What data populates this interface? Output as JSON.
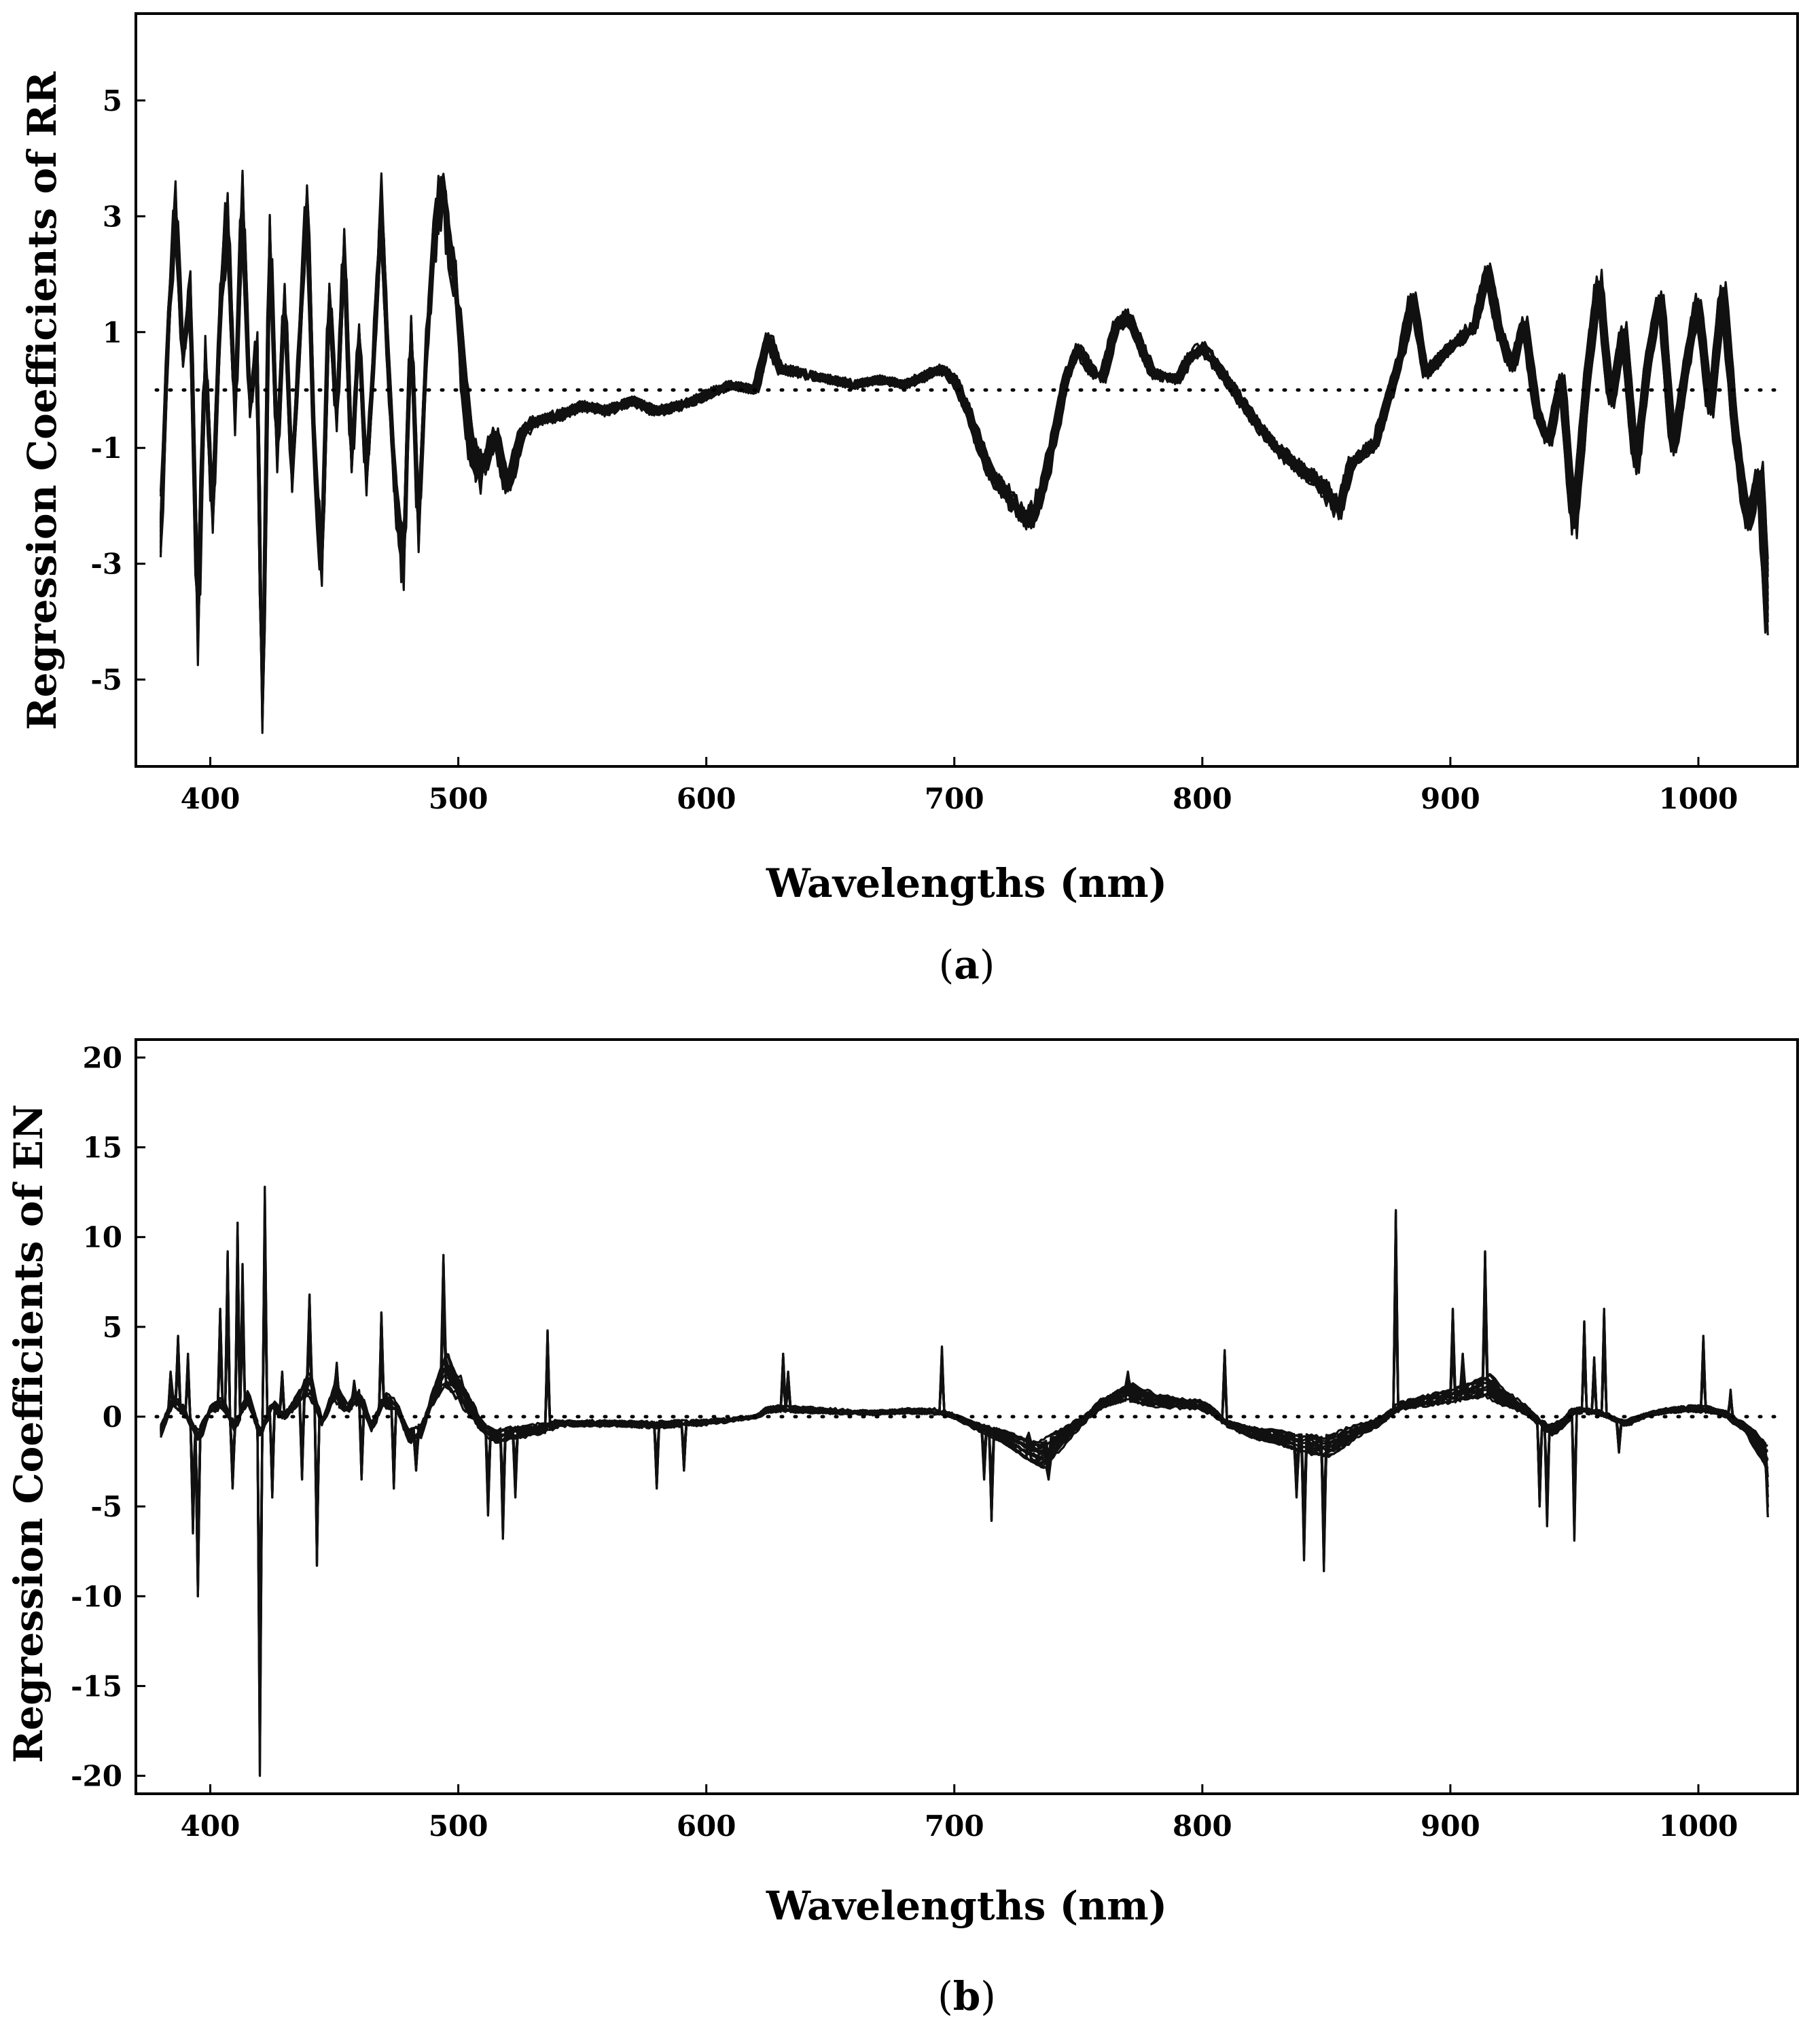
{
  "chart_data": [
    {
      "id": "a",
      "type": "line",
      "caption_letter": "a",
      "xlabel": "Wavelengths (nm)",
      "ylabel": "Regression Coefficients of RR",
      "xlim": [
        370,
        1040
      ],
      "ylim": [
        -6.5,
        6.5
      ],
      "xticks": [
        400,
        500,
        600,
        700,
        800,
        900,
        1000
      ],
      "yticks": [
        5,
        3,
        1,
        -1,
        -3,
        -5
      ],
      "reference_line": {
        "y": 0,
        "style": "dotted"
      },
      "series_count": 20,
      "base_profile": {
        "x": [
          380,
          383,
          386,
          389,
          392,
          395,
          398,
          401,
          404,
          407,
          410,
          413,
          416,
          419,
          421,
          424,
          427,
          430,
          433,
          436,
          439,
          442,
          445,
          448,
          451,
          454,
          457,
          460,
          463,
          466,
          469,
          472,
          475,
          478,
          481,
          484,
          487,
          490,
          493,
          496,
          499,
          502,
          505,
          510,
          515,
          520,
          525,
          530,
          540,
          550,
          560,
          570,
          580,
          590,
          600,
          610,
          620,
          625,
          630,
          640,
          650,
          660,
          670,
          680,
          690,
          695,
          700,
          705,
          710,
          715,
          720,
          725,
          730,
          735,
          740,
          745,
          750,
          755,
          760,
          765,
          770,
          775,
          780,
          790,
          795,
          800,
          810,
          820,
          830,
          840,
          850,
          855,
          860,
          870,
          875,
          880,
          885,
          890,
          900,
          910,
          915,
          920,
          925,
          930,
          935,
          940,
          945,
          950,
          955,
          960,
          965,
          970,
          975,
          980,
          985,
          990,
          995,
          1000,
          1005,
          1010,
          1015,
          1020,
          1025,
          1028
        ],
        "y": [
          -2.6,
          1.0,
          3.2,
          0.5,
          1.8,
          -4.2,
          0.8,
          -2.3,
          1.4,
          3.0,
          -0.6,
          3.4,
          -0.4,
          0.9,
          -6.2,
          2.9,
          -1.3,
          1.7,
          -1.6,
          0.8,
          3.4,
          -1.2,
          -3.1,
          1.8,
          -0.7,
          2.6,
          -1.4,
          1.1,
          -1.6,
          0.6,
          3.3,
          0.2,
          -1.9,
          -3.0,
          1.2,
          -2.5,
          0.6,
          2.4,
          3.4,
          2.6,
          1.8,
          0.3,
          -1.0,
          -1.5,
          -0.8,
          -1.9,
          -0.9,
          -0.6,
          -0.5,
          -0.3,
          -0.4,
          -0.2,
          -0.4,
          -0.3,
          -0.1,
          0.1,
          0.0,
          1.0,
          0.4,
          0.3,
          0.2,
          0.1,
          0.2,
          0.1,
          0.3,
          0.4,
          0.2,
          -0.3,
          -1.0,
          -1.6,
          -1.9,
          -2.2,
          -2.5,
          -2.0,
          -1.0,
          0.2,
          0.8,
          0.4,
          0.2,
          1.2,
          1.4,
          0.9,
          0.3,
          0.2,
          0.6,
          0.8,
          0.2,
          -0.5,
          -1.1,
          -1.5,
          -1.9,
          -2.3,
          -1.4,
          -1.0,
          -0.2,
          0.6,
          1.8,
          0.3,
          0.8,
          1.2,
          2.3,
          1.1,
          0.4,
          1.3,
          -0.4,
          -1.0,
          0.3,
          -2.7,
          0.1,
          2.1,
          -0.3,
          1.2,
          -1.5,
          0.6,
          1.8,
          -1.2,
          0.4,
          1.7,
          -0.5,
          2.0,
          -0.8,
          -2.6,
          -1.5,
          -4.4
        ]
      }
    },
    {
      "id": "b",
      "type": "line",
      "caption_letter": "b",
      "xlabel": "Wavelengths (nm)",
      "ylabel": "Regression Coefficients of EN",
      "xlim": [
        370,
        1040
      ],
      "ylim": [
        -21,
        21
      ],
      "xticks": [
        400,
        500,
        600,
        700,
        800,
        900,
        1000
      ],
      "yticks": [
        20,
        15,
        10,
        5,
        0,
        -5,
        -10,
        -15,
        -20
      ],
      "reference_line": {
        "y": 0,
        "style": "dotted"
      },
      "series_count": 20,
      "base_profile": {
        "x": [
          380,
          385,
          390,
          395,
          400,
          405,
          410,
          415,
          420,
          425,
          430,
          435,
          440,
          445,
          450,
          455,
          460,
          465,
          470,
          475,
          480,
          485,
          490,
          495,
          500,
          505,
          510,
          515,
          520,
          530,
          540,
          560,
          580,
          600,
          610,
          620,
          625,
          630,
          640,
          650,
          660,
          670,
          680,
          690,
          695,
          700,
          710,
          720,
          730,
          735,
          740,
          750,
          760,
          770,
          780,
          790,
          800,
          805,
          810,
          820,
          830,
          840,
          850,
          855,
          860,
          870,
          880,
          890,
          900,
          910,
          915,
          920,
          930,
          940,
          945,
          950,
          960,
          970,
          980,
          990,
          1000,
          1010,
          1020,
          1028
        ],
        "y": [
          -1.0,
          1.2,
          0.3,
          -1.5,
          0.5,
          1.0,
          -0.8,
          1.5,
          -1.2,
          0.8,
          0.0,
          1.2,
          2.5,
          -0.5,
          1.8,
          0.5,
          1.5,
          -0.8,
          1.2,
          0.8,
          -1.5,
          -1.0,
          1.5,
          3.5,
          2.0,
          0.5,
          -0.8,
          -1.5,
          -1.2,
          -1.0,
          -0.5,
          -0.5,
          -0.6,
          -0.4,
          -0.2,
          0.0,
          0.5,
          0.6,
          0.5,
          0.4,
          0.3,
          0.3,
          0.4,
          0.4,
          0.3,
          0.0,
          -0.8,
          -1.5,
          -2.5,
          -2.8,
          -2.0,
          -0.5,
          1.0,
          1.8,
          1.2,
          1.0,
          0.8,
          0.2,
          -0.5,
          -1.2,
          -1.5,
          -2.0,
          -2.2,
          -1.8,
          -1.2,
          -0.5,
          0.8,
          1.2,
          1.5,
          2.0,
          2.3,
          1.5,
          0.5,
          -1.0,
          -0.5,
          0.5,
          0.3,
          -0.5,
          0.2,
          0.5,
          0.6,
          0.3,
          -1.0,
          -3.0
        ]
      },
      "spikes": [
        {
          "x": 384,
          "y": 2.5
        },
        {
          "x": 387,
          "y": 4.5
        },
        {
          "x": 391,
          "y": 3.5
        },
        {
          "x": 393,
          "y": -6.5
        },
        {
          "x": 395,
          "y": -10.0
        },
        {
          "x": 404,
          "y": 6.0
        },
        {
          "x": 407,
          "y": 9.2
        },
        {
          "x": 409,
          "y": -4.0
        },
        {
          "x": 411,
          "y": 10.8
        },
        {
          "x": 413,
          "y": 8.5
        },
        {
          "x": 420,
          "y": -20.0
        },
        {
          "x": 422,
          "y": 12.8
        },
        {
          "x": 425,
          "y": -4.5
        },
        {
          "x": 429,
          "y": 2.5
        },
        {
          "x": 437,
          "y": -3.5
        },
        {
          "x": 440,
          "y": 6.8
        },
        {
          "x": 443,
          "y": -8.3
        },
        {
          "x": 451,
          "y": 3.0
        },
        {
          "x": 458,
          "y": 2.0
        },
        {
          "x": 461,
          "y": -3.5
        },
        {
          "x": 469,
          "y": 5.8
        },
        {
          "x": 474,
          "y": -4.0
        },
        {
          "x": 483,
          "y": -3.0
        },
        {
          "x": 494,
          "y": 9.0
        },
        {
          "x": 512,
          "y": -5.5
        },
        {
          "x": 518,
          "y": -6.8
        },
        {
          "x": 523,
          "y": -4.5
        },
        {
          "x": 536,
          "y": 4.8
        },
        {
          "x": 580,
          "y": -4.0
        },
        {
          "x": 591,
          "y": -3.0
        },
        {
          "x": 631,
          "y": 3.5
        },
        {
          "x": 633,
          "y": 2.5
        },
        {
          "x": 695,
          "y": 3.9
        },
        {
          "x": 712,
          "y": -3.5
        },
        {
          "x": 715,
          "y": -5.8
        },
        {
          "x": 730,
          "y": -1.5
        },
        {
          "x": 738,
          "y": -3.5
        },
        {
          "x": 770,
          "y": 2.5
        },
        {
          "x": 809,
          "y": 3.7
        },
        {
          "x": 838,
          "y": -4.5
        },
        {
          "x": 841,
          "y": -8.0
        },
        {
          "x": 849,
          "y": -8.6
        },
        {
          "x": 878,
          "y": 11.5
        },
        {
          "x": 901,
          "y": 6.0
        },
        {
          "x": 905,
          "y": 3.5
        },
        {
          "x": 914,
          "y": 9.2
        },
        {
          "x": 936,
          "y": -5.0
        },
        {
          "x": 939,
          "y": -6.1
        },
        {
          "x": 950,
          "y": -6.9
        },
        {
          "x": 954,
          "y": 5.3
        },
        {
          "x": 958,
          "y": 3.3
        },
        {
          "x": 962,
          "y": 6.0
        },
        {
          "x": 968,
          "y": -2.0
        },
        {
          "x": 1002,
          "y": 4.5
        },
        {
          "x": 1013,
          "y": 1.5
        },
        {
          "x": 1028,
          "y": -5.6
        }
      ]
    }
  ],
  "captions": {
    "a": "a",
    "b": "b"
  }
}
